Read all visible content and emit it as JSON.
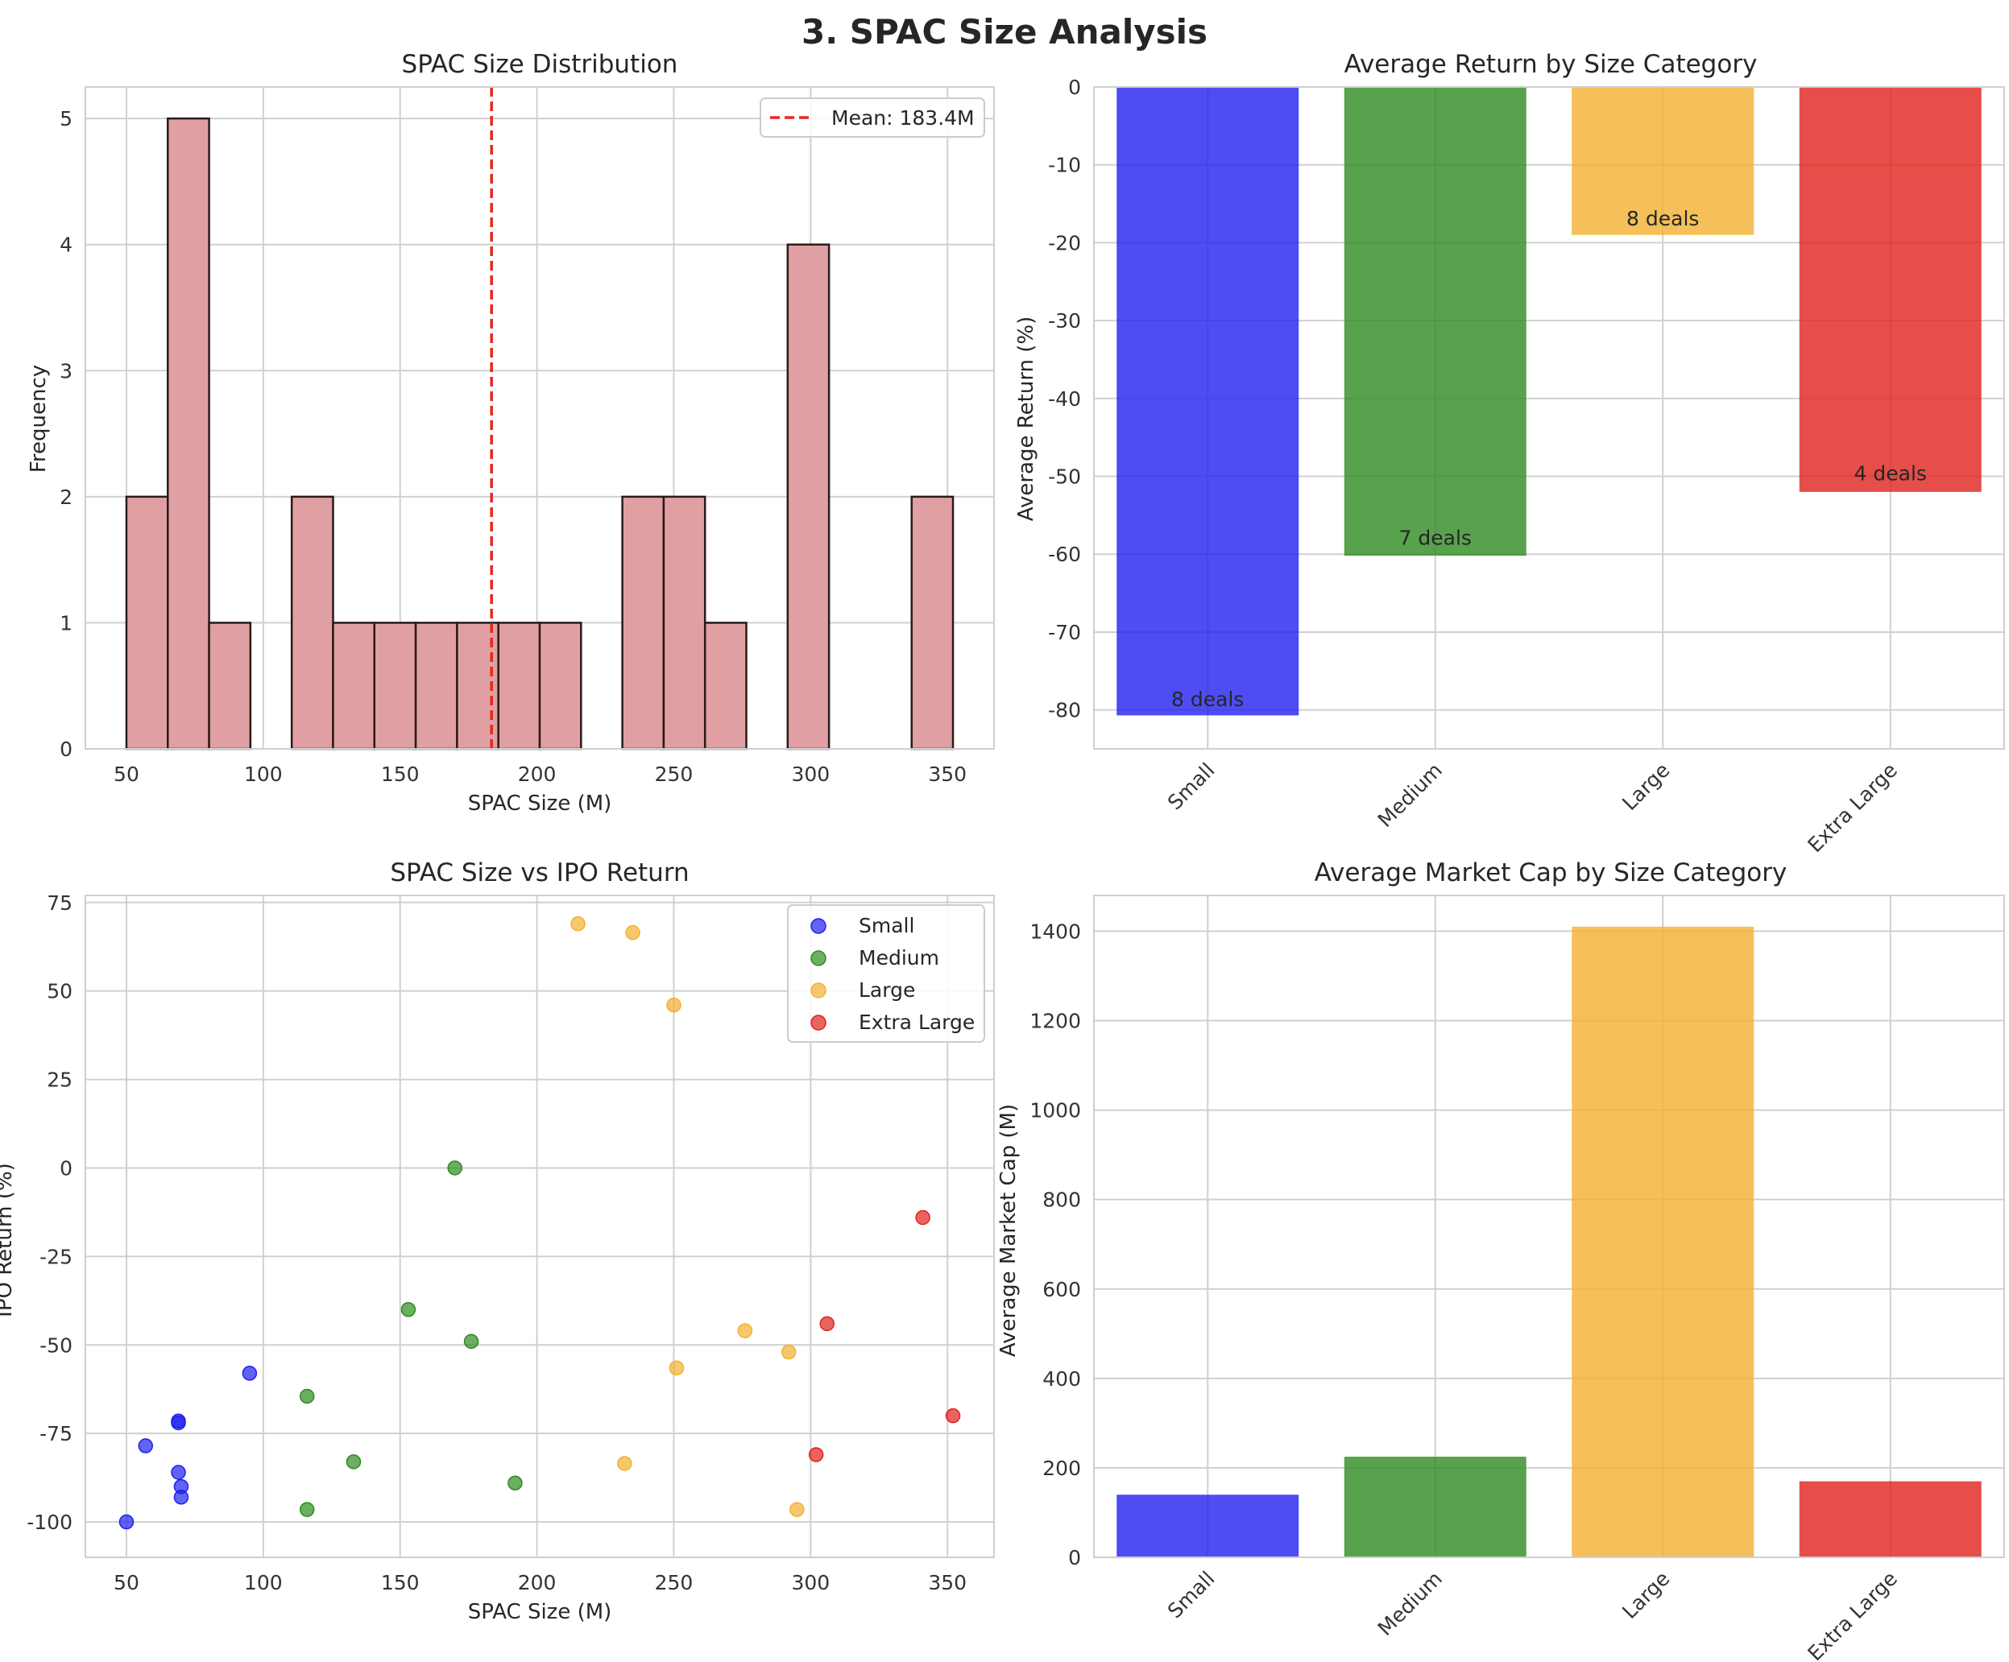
{
  "suptitle": "3. SPAC Size Analysis",
  "colors": {
    "hist_fill": "#e0a0a3",
    "hist_edge": "#2a1a1a",
    "mean_line": "#e8261c",
    "Small": "#2020f0",
    "Medium": "#2e8b20",
    "Large": "#f2b030",
    "Extra Large": "#e0221c"
  },
  "chart_data": [
    {
      "id": "hist",
      "type": "bar",
      "subtype": "histogram",
      "title": "SPAC Size Distribution",
      "xlabel": "SPAC Size (M)",
      "ylabel": "Frequency",
      "xlim": [
        35,
        367
      ],
      "ylim": [
        0,
        5.25
      ],
      "xticks": [
        50,
        100,
        150,
        200,
        250,
        300,
        350
      ],
      "yticks": [
        0,
        1,
        2,
        3,
        4,
        5
      ],
      "bin_start": 50,
      "bin_width": 15.1,
      "counts": [
        2,
        5,
        1,
        0,
        2,
        1,
        1,
        1,
        1,
        1,
        1,
        0,
        2,
        2,
        1,
        0,
        4,
        0,
        0,
        2
      ],
      "mean_value": 183.4,
      "legend": "Mean: 183.4M",
      "grid": true,
      "legend_loc": "top-right"
    },
    {
      "id": "ret",
      "type": "bar",
      "title": "Average Return by Size Category",
      "xlabel": "",
      "ylabel": "Average Return (%)",
      "categories": [
        "Small",
        "Medium",
        "Large",
        "Extra Large"
      ],
      "values": [
        -80.7,
        -60.2,
        -19.0,
        -52.0
      ],
      "annotations": [
        "8 deals",
        "7 deals",
        "8 deals",
        "4 deals"
      ],
      "annotation_y": [
        -79.5,
        -58.8,
        -17.8,
        -50.5
      ],
      "ylim": [
        -85,
        0
      ],
      "yticks": [
        0,
        -10,
        -20,
        -30,
        -40,
        -50,
        -60,
        -70,
        -80
      ],
      "grid": true
    },
    {
      "id": "scatter",
      "type": "scatter",
      "title": "SPAC Size vs IPO Return",
      "xlabel": "SPAC Size (M)",
      "ylabel": "IPO Return (%)",
      "xlim": [
        35,
        367
      ],
      "ylim": [
        -110,
        77
      ],
      "xticks": [
        50,
        100,
        150,
        200,
        250,
        300,
        350
      ],
      "yticks": [
        75,
        50,
        25,
        0,
        -25,
        -50,
        -75,
        -100
      ],
      "legend_loc": "top-right",
      "grid": true,
      "series": [
        {
          "name": "Small",
          "x": [
            50,
            57,
            69,
            69,
            69,
            70,
            70,
            95
          ],
          "y": [
            -100,
            -78.5,
            -71.5,
            -72,
            -86,
            -90,
            -93,
            -58
          ]
        },
        {
          "name": "Medium",
          "x": [
            116,
            116,
            133,
            153,
            170,
            176,
            192
          ],
          "y": [
            -64.5,
            -96.5,
            -83,
            -40,
            0,
            -49,
            -89
          ]
        },
        {
          "name": "Large",
          "x": [
            215,
            232,
            235,
            250,
            251,
            276,
            292,
            295
          ],
          "y": [
            69,
            -83.5,
            66.5,
            46,
            -56.5,
            -46,
            -52,
            -96.5
          ]
        },
        {
          "name": "Extra Large",
          "x": [
            302,
            306,
            341,
            352
          ],
          "y": [
            -81,
            -44,
            -14,
            -70
          ]
        }
      ]
    },
    {
      "id": "mcap",
      "type": "bar",
      "title": "Average Market Cap by Size Category",
      "xlabel": "",
      "ylabel": "Average Market Cap (M)",
      "categories": [
        "Small",
        "Medium",
        "Large",
        "Extra Large"
      ],
      "values": [
        140,
        225,
        1410,
        170
      ],
      "ylim": [
        0,
        1480
      ],
      "yticks": [
        0,
        200,
        400,
        600,
        800,
        1000,
        1200,
        1400
      ],
      "grid": true
    }
  ]
}
